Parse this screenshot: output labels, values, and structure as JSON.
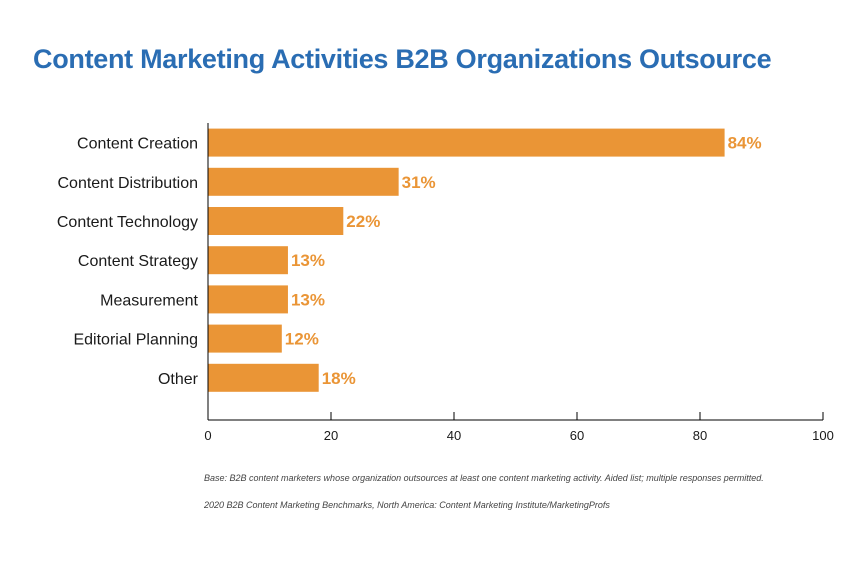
{
  "chart_data": {
    "type": "bar",
    "orientation": "horizontal",
    "title": "Content Marketing Activities B2B Organizations Outsource",
    "categories": [
      "Content Creation",
      "Content Distribution",
      "Content Technology",
      "Content Strategy",
      "Measurement",
      "Editorial Planning",
      "Other"
    ],
    "values": [
      84,
      31,
      22,
      13,
      13,
      12,
      18
    ],
    "value_labels": [
      "84%",
      "31%",
      "22%",
      "13%",
      "13%",
      "12%",
      "18%"
    ],
    "xlim": [
      0,
      100
    ],
    "xticks": [
      0,
      20,
      40,
      60,
      80,
      100
    ],
    "xlabel": "",
    "ylabel": "",
    "grid": false,
    "bar_color": "#ea9536",
    "title_color": "#2a6db3"
  },
  "footnotes": {
    "base": "Base: B2B content marketers whose organization outsources at least one content marketing activity. Aided list; multiple responses permitted.",
    "source": "2020 B2B Content Marketing Benchmarks, North America: Content Marketing Institute/MarketingProfs"
  }
}
